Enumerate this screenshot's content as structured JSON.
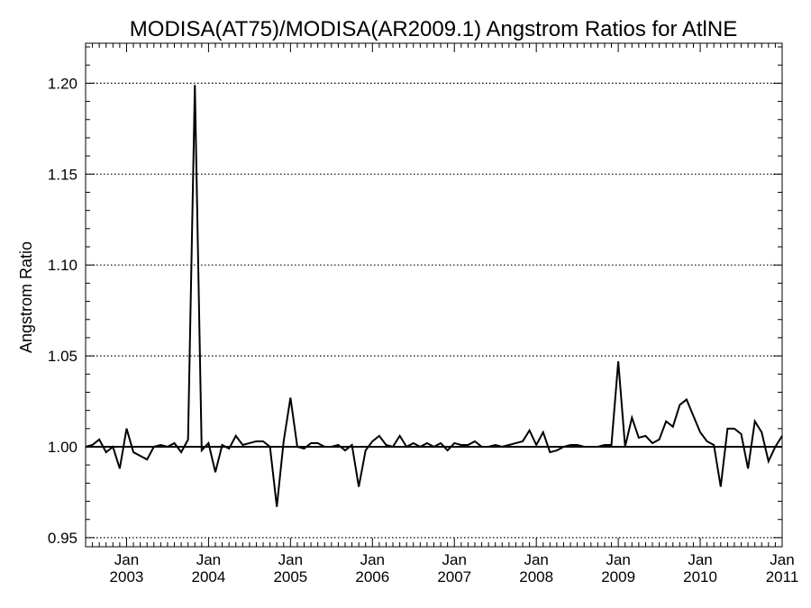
{
  "chart_data": {
    "type": "line",
    "title": "MODISA(AT75)/MODISA(AR2009.1)  Angstrom Ratios for AtlNE",
    "xlabel": "",
    "ylabel": "Angstrom Ratio",
    "ylim": [
      0.945,
      1.222
    ],
    "xlim": [
      "2002-07",
      "2011-01"
    ],
    "y_ticks": [
      "0.95",
      "1.00",
      "1.05",
      "1.10",
      "1.15",
      "1.20"
    ],
    "x_ticks": [
      {
        "month": "Jan",
        "year": "2003",
        "date": "2003-01"
      },
      {
        "month": "Jan",
        "year": "2004",
        "date": "2004-01"
      },
      {
        "month": "Jan",
        "year": "2005",
        "date": "2005-01"
      },
      {
        "month": "Jan",
        "year": "2006",
        "date": "2006-01"
      },
      {
        "month": "Jan",
        "year": "2007",
        "date": "2007-01"
      },
      {
        "month": "Jan",
        "year": "2008",
        "date": "2008-01"
      },
      {
        "month": "Jan",
        "year": "2009",
        "date": "2009-01"
      },
      {
        "month": "Jan",
        "year": "2010",
        "date": "2010-01"
      },
      {
        "month": "Jan",
        "year": "2011",
        "date": "2011-01"
      }
    ],
    "grid": "horizontal dotted",
    "reference_line": 1.0,
    "series": [
      {
        "x": [
          "2002-07",
          "2002-08",
          "2002-09",
          "2002-10",
          "2002-11",
          "2002-12",
          "2003-01",
          "2003-02",
          "2003-03",
          "2003-04",
          "2003-05",
          "2003-06",
          "2003-07",
          "2003-08",
          "2003-09",
          "2003-10",
          "2003-11",
          "2003-12",
          "2004-01",
          "2004-02",
          "2004-03",
          "2004-04",
          "2004-05",
          "2004-06",
          "2004-07",
          "2004-08",
          "2004-09",
          "2004-10",
          "2004-11",
          "2004-12",
          "2005-01",
          "2005-02",
          "2005-03",
          "2005-04",
          "2005-05",
          "2005-06",
          "2005-07",
          "2005-08",
          "2005-09",
          "2005-10",
          "2005-11",
          "2005-12",
          "2006-01",
          "2006-02",
          "2006-03",
          "2006-04",
          "2006-05",
          "2006-06",
          "2006-07",
          "2006-08",
          "2006-09",
          "2006-10",
          "2006-11",
          "2006-12",
          "2007-01",
          "2007-02",
          "2007-03",
          "2007-04",
          "2007-05",
          "2007-06",
          "2007-07",
          "2007-08",
          "2007-09",
          "2007-10",
          "2007-11",
          "2007-12",
          "2008-01",
          "2008-02",
          "2008-03",
          "2008-04",
          "2008-05",
          "2008-06",
          "2008-07",
          "2008-08",
          "2008-09",
          "2008-10",
          "2008-11",
          "2008-12",
          "2009-01",
          "2009-02",
          "2009-03",
          "2009-04",
          "2009-05",
          "2009-06",
          "2009-07",
          "2009-08",
          "2009-09",
          "2009-10",
          "2009-11",
          "2009-12",
          "2010-01",
          "2010-02",
          "2010-03",
          "2010-04",
          "2010-05",
          "2010-06",
          "2010-07",
          "2010-08",
          "2010-09",
          "2010-10",
          "2010-11",
          "2010-12",
          "2011-01"
        ],
        "values": [
          1.0,
          1.001,
          1.004,
          0.997,
          1.0,
          0.988,
          1.01,
          0.997,
          0.995,
          0.993,
          1.0,
          1.001,
          1.0,
          1.002,
          0.997,
          1.004,
          1.199,
          0.998,
          1.002,
          0.986,
          1.001,
          0.999,
          1.006,
          1.001,
          1.002,
          1.003,
          1.003,
          1.0,
          0.967,
          1.003,
          1.027,
          1.0,
          0.999,
          1.002,
          1.002,
          1.0,
          1.0,
          1.001,
          0.998,
          1.001,
          0.978,
          0.998,
          1.003,
          1.006,
          1.001,
          1.0,
          1.006,
          1.0,
          1.002,
          1.0,
          1.002,
          1.0,
          1.002,
          0.998,
          1.002,
          1.001,
          1.001,
          1.003,
          1.0,
          1.0,
          1.001,
          1.0,
          1.001,
          1.002,
          1.003,
          1.009,
          1.001,
          1.008,
          0.997,
          0.998,
          1.0,
          1.001,
          1.001,
          1.0,
          1.0,
          1.0,
          1.001,
          1.001,
          1.047,
          1.0,
          1.016,
          1.005,
          1.006,
          1.002,
          1.004,
          1.014,
          1.011,
          1.023,
          1.026,
          1.017,
          1.008,
          1.003,
          1.001,
          0.978,
          1.01,
          1.01,
          1.007,
          0.988,
          1.014,
          1.008,
          0.992,
          1.0,
          1.006
        ]
      }
    ]
  }
}
